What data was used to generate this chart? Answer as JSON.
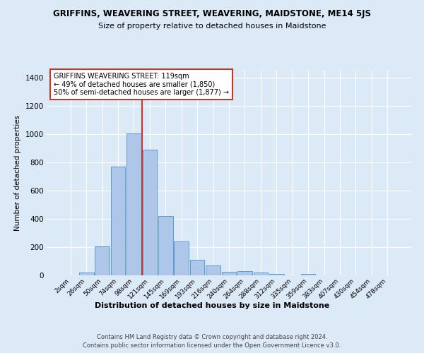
{
  "title": "GRIFFINS, WEAVERING STREET, WEAVERING, MAIDSTONE, ME14 5JS",
  "subtitle": "Size of property relative to detached houses in Maidstone",
  "xlabel": "Distribution of detached houses by size in Maidstone",
  "ylabel": "Number of detached properties",
  "footnote1": "Contains HM Land Registry data © Crown copyright and database right 2024.",
  "footnote2": "Contains public sector information licensed under the Open Government Licence v3.0.",
  "bar_labels": [
    "2sqm",
    "26sqm",
    "50sqm",
    "74sqm",
    "98sqm",
    "121sqm",
    "145sqm",
    "169sqm",
    "193sqm",
    "216sqm",
    "240sqm",
    "264sqm",
    "288sqm",
    "312sqm",
    "335sqm",
    "359sqm",
    "383sqm",
    "407sqm",
    "430sqm",
    "454sqm",
    "478sqm"
  ],
  "bar_values": [
    0,
    20,
    205,
    770,
    1005,
    890,
    420,
    240,
    112,
    70,
    25,
    28,
    20,
    10,
    0,
    10,
    0,
    0,
    0,
    0,
    0
  ],
  "bar_color": "#aec6e8",
  "bar_edge_color": "#5b9bd5",
  "bg_color": "#dce9f7",
  "grid_color": "#ffffff",
  "vline_color": "#c0392b",
  "vline_x_index": 4.5,
  "annotation_text": "GRIFFINS WEAVERING STREET: 119sqm\n← 49% of detached houses are smaller (1,850)\n50% of semi-detached houses are larger (1,877) →",
  "annotation_box_color": "#ffffff",
  "annotation_box_edge": "#c0392b",
  "ylim": [
    0,
    1450
  ],
  "yticks": [
    0,
    200,
    400,
    600,
    800,
    1000,
    1200,
    1400
  ]
}
